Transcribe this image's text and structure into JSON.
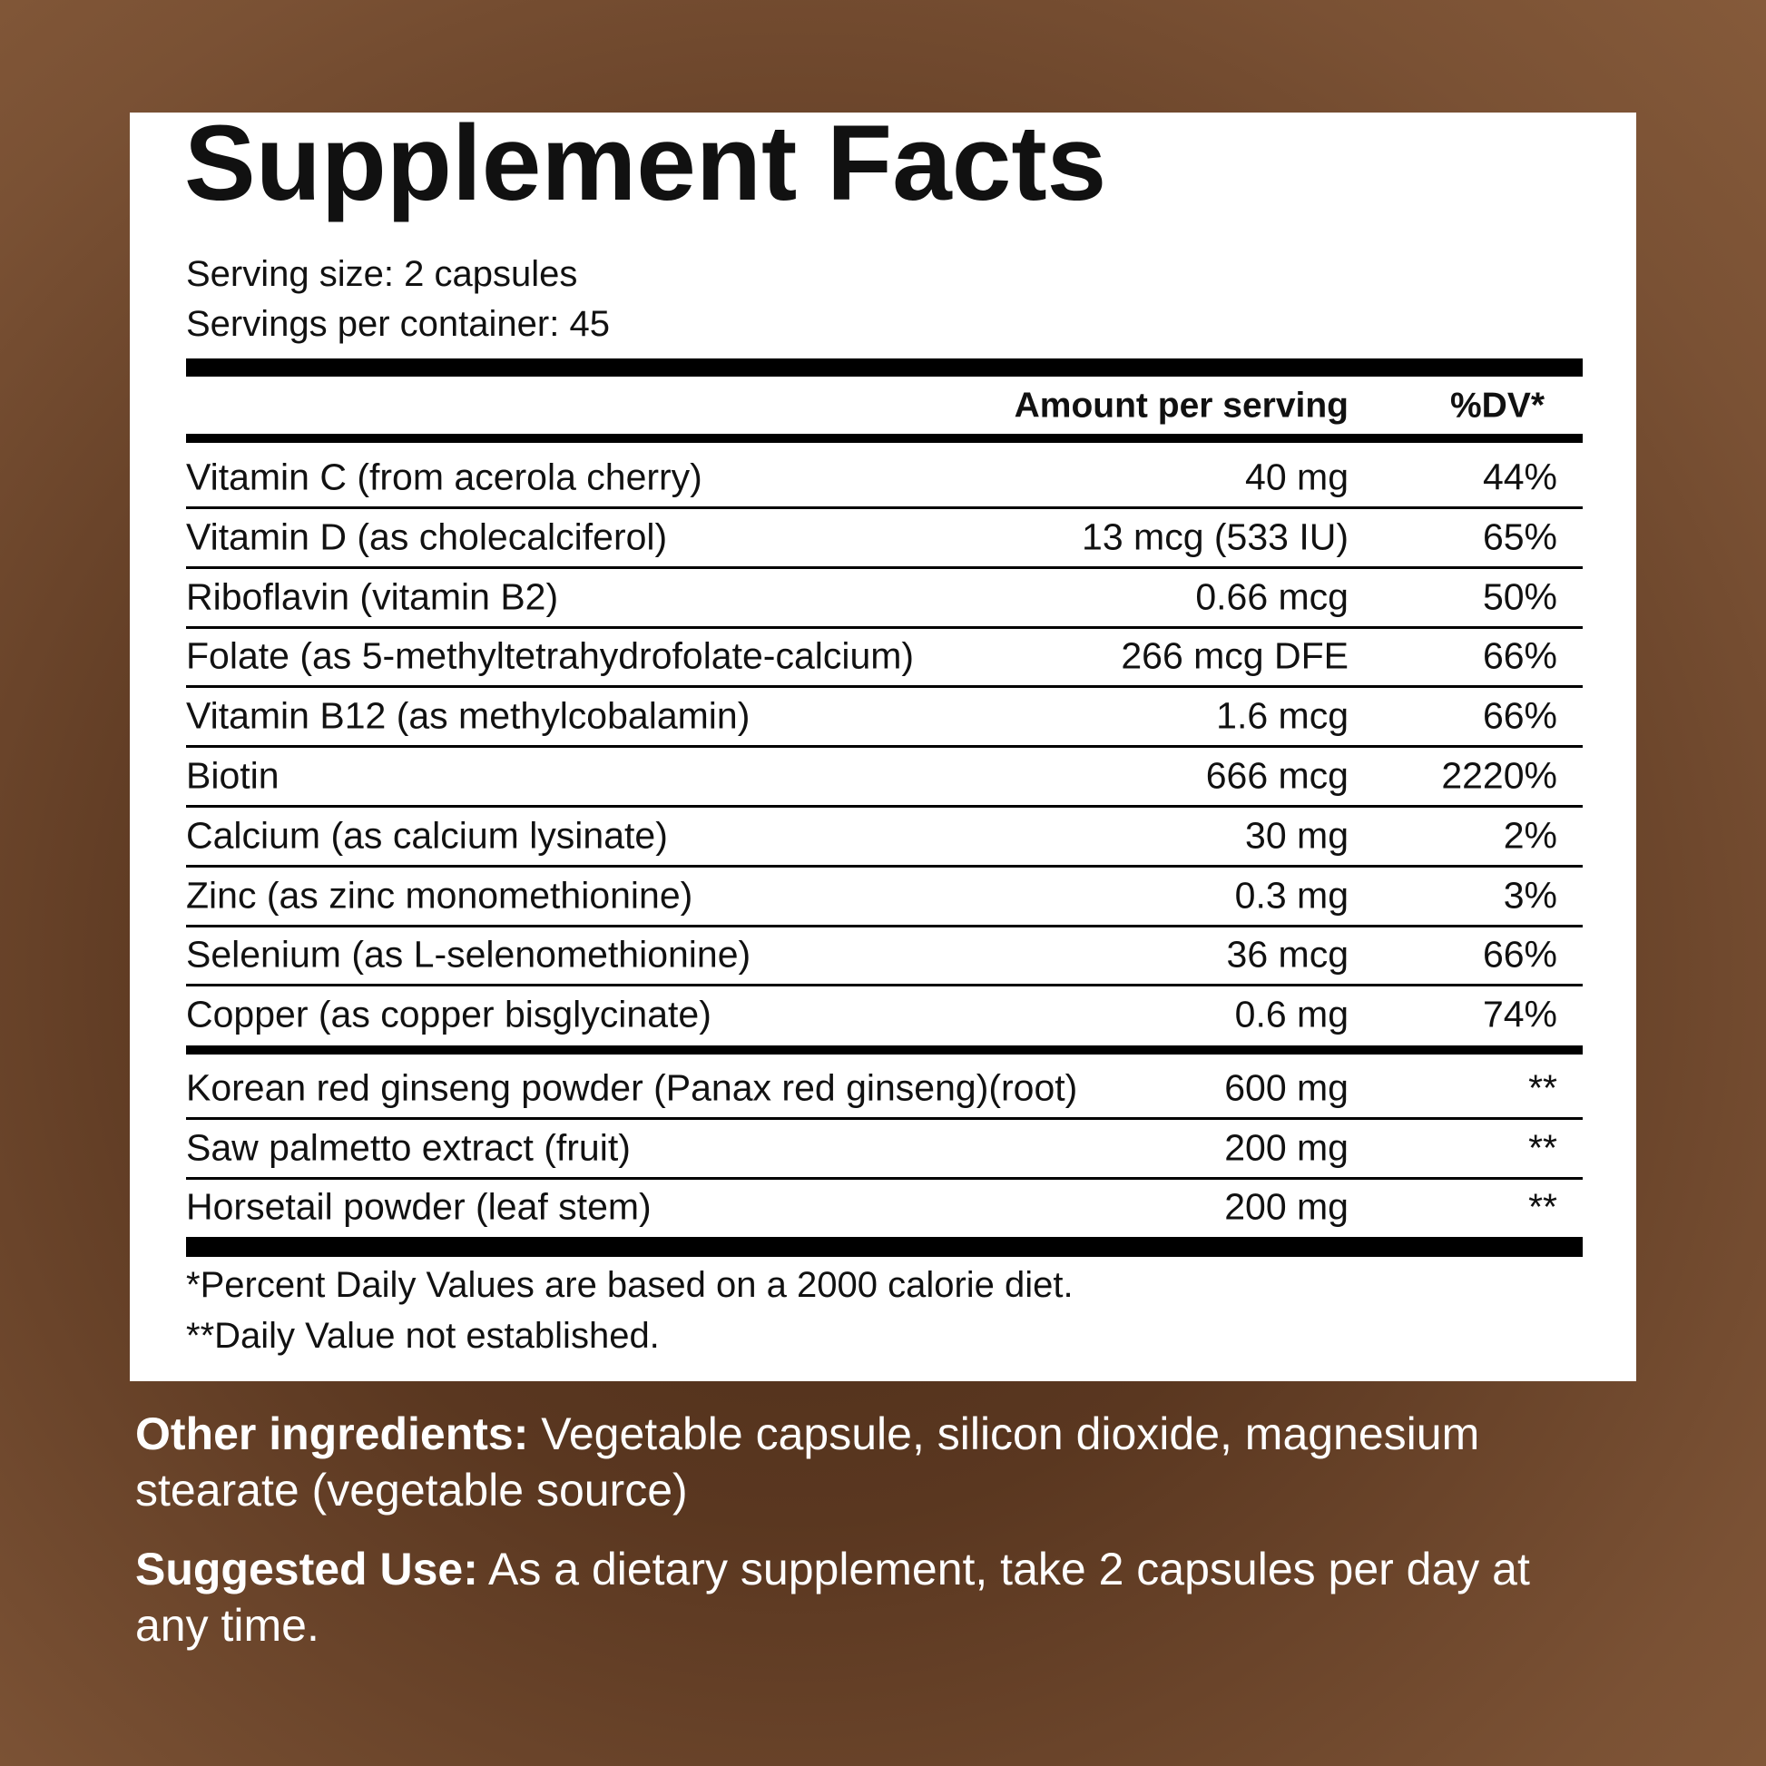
{
  "header": {
    "title": "Supplement Facts",
    "serving_size": "Serving size: 2 capsules",
    "servings_per_container": "Servings per container: 45"
  },
  "table": {
    "columns": [
      "Amount per serving",
      "%DV*"
    ],
    "rows": [
      [
        "Vitamin C (from acerola cherry)",
        "40 mg",
        "44%"
      ],
      [
        "Vitamin D (as cholecalciferol)",
        "13 mcg (533 IU)",
        "65%"
      ],
      [
        "Riboflavin (vitamin B2)",
        "0.66 mcg",
        "50%"
      ],
      [
        "Folate (as 5-methyltetrahydrofolate-calcium)",
        "266 mcg DFE",
        "66%"
      ],
      [
        "Vitamin B12 (as methylcobalamin)",
        "1.6 mcg",
        "66%"
      ],
      [
        "Biotin",
        "666 mcg",
        "2220%"
      ],
      [
        "Calcium (as calcium lysinate)",
        "30 mg",
        "2%"
      ],
      [
        "Zinc (as zinc monomethionine)",
        "0.3 mg",
        "3%"
      ],
      [
        "Selenium (as L-selenomethionine)",
        "36 mcg",
        "66%"
      ],
      [
        "Copper (as copper bisglycinate)",
        "0.6 mg",
        "74%"
      ]
    ],
    "other_rows": [
      [
        "Korean red ginseng powder (Panax red ginseng)(root)",
        "600 mg",
        "**"
      ],
      [
        "Saw palmetto extract (fruit)",
        "200 mg",
        "**"
      ],
      [
        "Horsetail powder (leaf stem)",
        "200 mg",
        "**"
      ]
    ]
  },
  "footnotes": [
    "*Percent Daily Values are based on a 2000 calorie diet.",
    "**Daily Value not established."
  ],
  "other_ingredients": {
    "label": "Other ingredients:",
    "text": "Vegetable capsule, silicon dioxide, magnesium stearate (vegetable source)"
  },
  "suggested_use": {
    "label": "Suggested Use:",
    "text": "As a dietary supplement, take 2 capsules per day at any time."
  }
}
